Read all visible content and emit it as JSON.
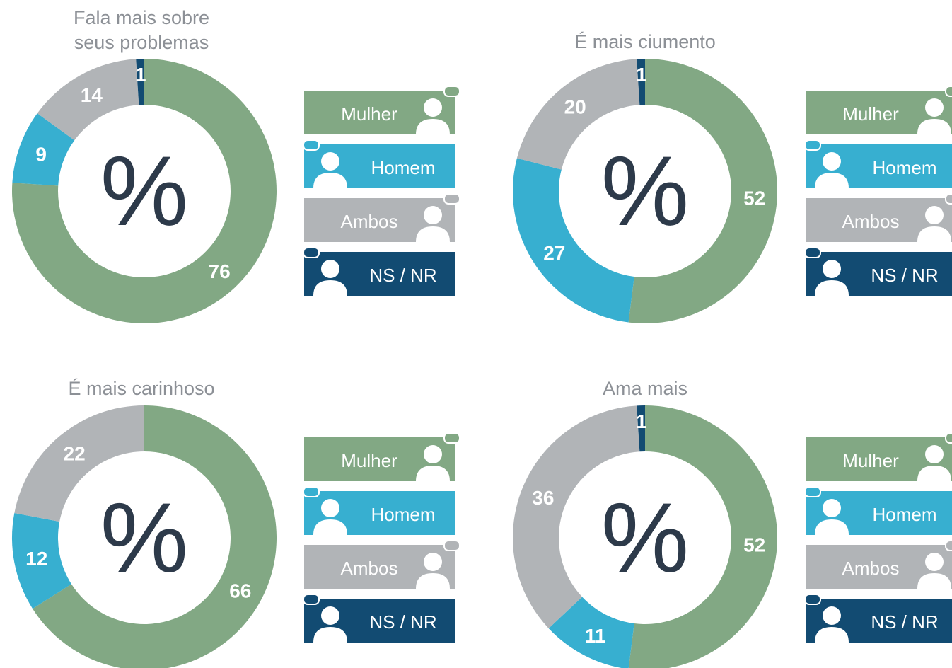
{
  "chart_data": [
    {
      "type": "pie",
      "title": "Fala mais sobre\nseus problemas",
      "center_label": "%",
      "categories": [
        "Mulher",
        "Homem",
        "Ambos",
        "NS / NR"
      ],
      "values": [
        76,
        9,
        14,
        1
      ],
      "colors": [
        "#82a884",
        "#37afd0",
        "#b1b4b7",
        "#124b72"
      ]
    },
    {
      "type": "pie",
      "title": "É mais ciumento",
      "center_label": "%",
      "categories": [
        "Mulher",
        "Homem",
        "Ambos",
        "NS / NR"
      ],
      "values": [
        52,
        27,
        20,
        1
      ],
      "colors": [
        "#82a884",
        "#37afd0",
        "#b1b4b7",
        "#124b72"
      ]
    },
    {
      "type": "pie",
      "title": "É mais carinhoso",
      "center_label": "%",
      "categories": [
        "Mulher",
        "Homem",
        "Ambos",
        "NS / NR"
      ],
      "values": [
        66,
        12,
        22,
        null
      ],
      "colors": [
        "#82a884",
        "#37afd0",
        "#b1b4b7",
        "#124b72"
      ]
    },
    {
      "type": "pie",
      "title": "Ama mais",
      "center_label": "%",
      "categories": [
        "Mulher",
        "Homem",
        "Ambos",
        "NS / NR"
      ],
      "values": [
        52,
        11,
        36,
        1
      ],
      "colors": [
        "#82a884",
        "#37afd0",
        "#b1b4b7",
        "#124b72"
      ]
    }
  ]
}
